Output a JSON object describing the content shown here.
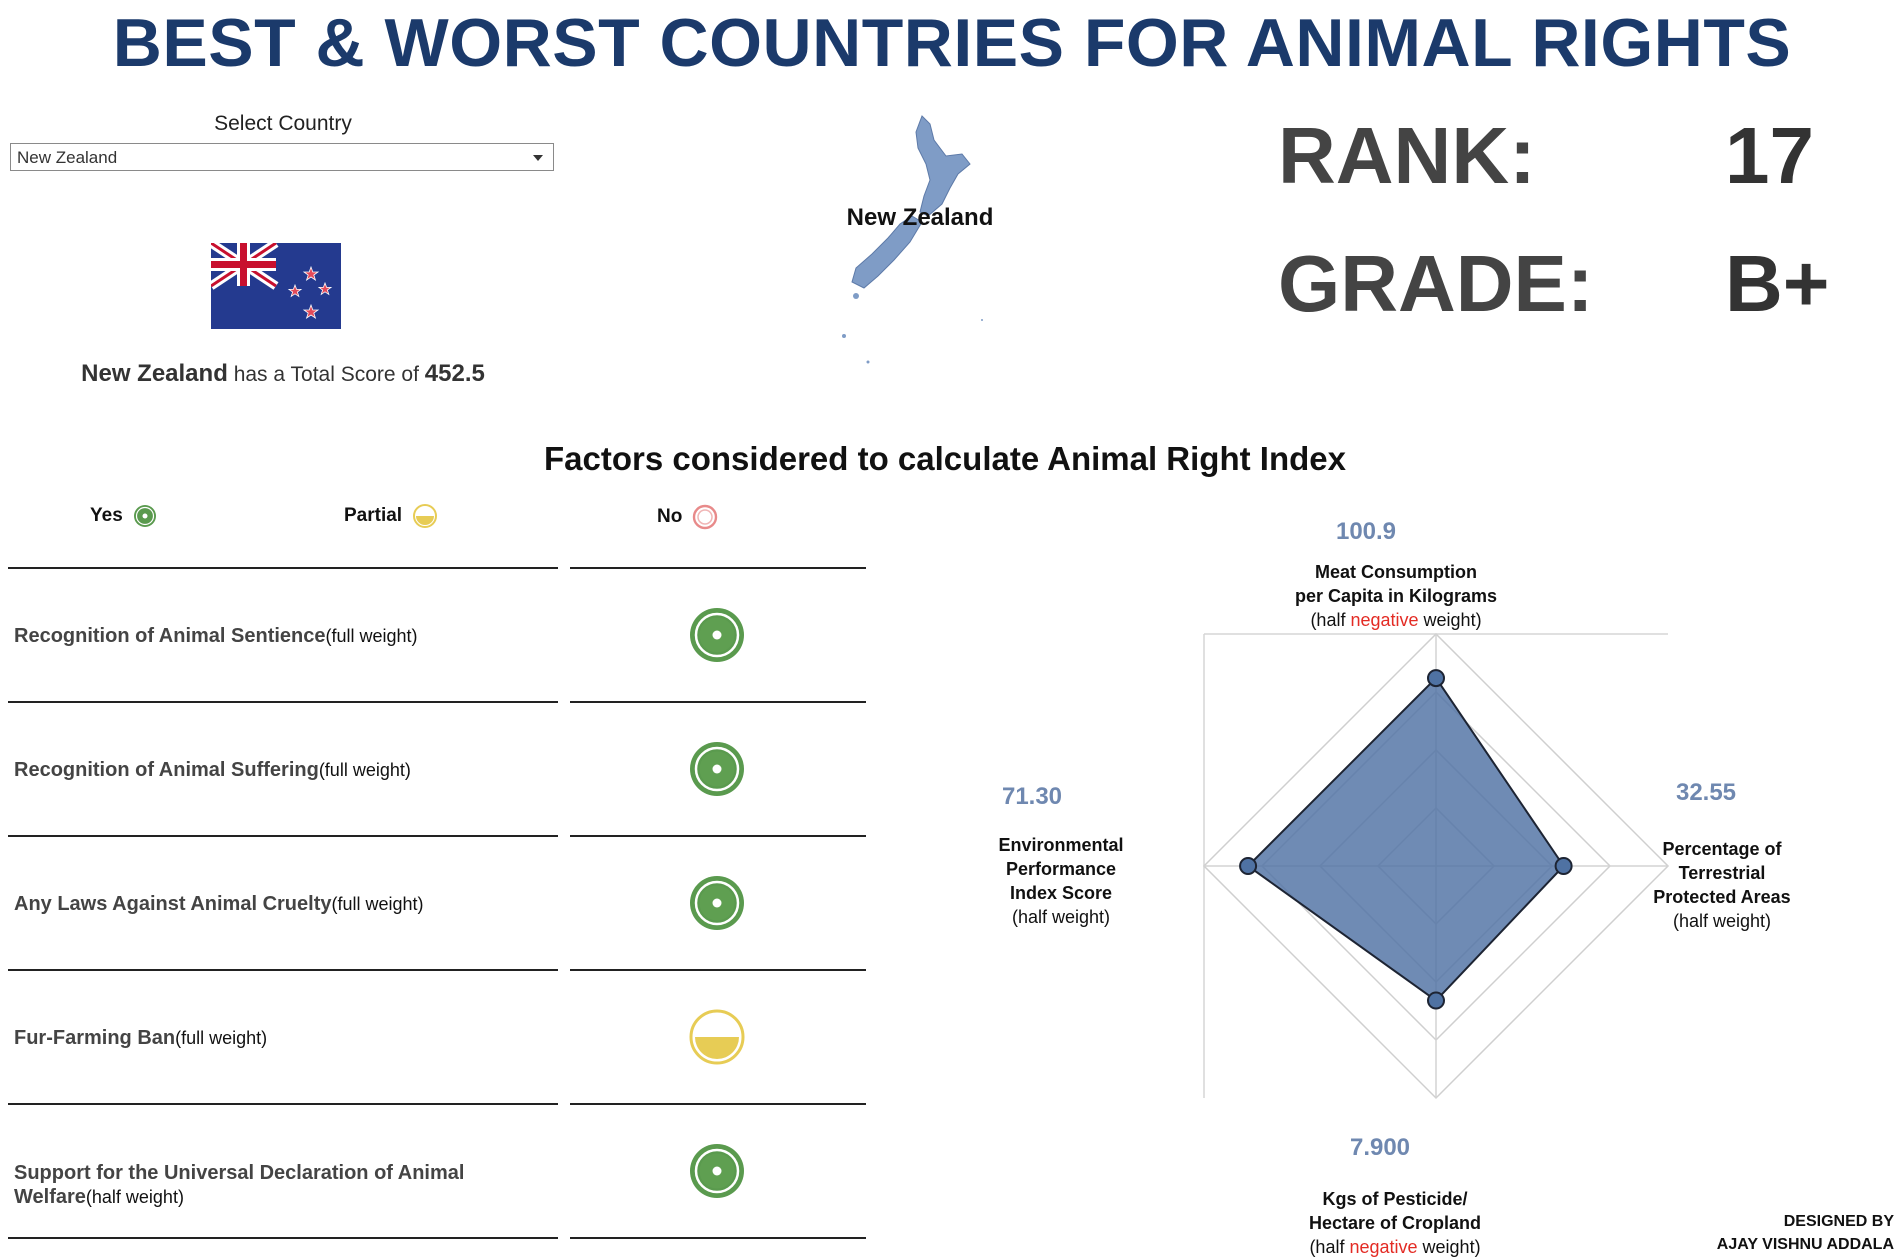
{
  "title": "BEST & WORST COUNTRIES FOR ANIMAL RIGHTS",
  "selector": {
    "label": "Select Country",
    "selected": "New Zealand"
  },
  "country": {
    "name": "New Zealand",
    "score_text": "has a Total Score of",
    "total_score": "452.5",
    "map_label": "New Zealand"
  },
  "rank": {
    "label": "RANK:",
    "value": "17"
  },
  "grade": {
    "label": "GRADE:",
    "value": "B+"
  },
  "factors_title": "Factors considered to calculate Animal Right Index",
  "legend": {
    "yes": "Yes",
    "partial": "Partial",
    "no": "No"
  },
  "status_colors": {
    "yes": "#5a9a4e",
    "partial": "#e7cc55",
    "no": "#e88a8a"
  },
  "factors": [
    {
      "name": "Recognition of Animal Sentience",
      "weight": "(full weight)",
      "status": "yes"
    },
    {
      "name": "Recognition of Animal Suffering",
      "weight": "(full weight)",
      "status": "yes"
    },
    {
      "name": "Any Laws Against Animal Cruelty",
      "weight": "(full weight)",
      "status": "yes"
    },
    {
      "name": "Fur-Farming Ban",
      "weight": "(full weight)",
      "status": "partial"
    },
    {
      "name": "Support for the Universal Declaration of Animal Welfare",
      "weight": "(half weight)",
      "status": "yes"
    }
  ],
  "chart_data": {
    "type": "radar",
    "title": "",
    "axes": [
      {
        "key": "top",
        "value_label": "100.9",
        "value": 0.81,
        "label_lines": [
          "Meat Consumption",
          "per Capita in Kilograms"
        ],
        "sub": {
          "prefix": "(half ",
          "neg": "negative",
          "suffix": " weight)"
        }
      },
      {
        "key": "right",
        "value_label": "32.55",
        "value": 0.55,
        "label_lines": [
          "Percentage of",
          "Terrestrial",
          "Protected Areas"
        ],
        "sub": {
          "prefix": "(half weight)",
          "neg": "",
          "suffix": ""
        }
      },
      {
        "key": "bottom",
        "value_label": "7.900",
        "value": 0.58,
        "label_lines": [
          "Kgs of Pesticide/",
          "Hectare of Cropland"
        ],
        "sub": {
          "prefix": "(half ",
          "neg": "negative",
          "suffix": " weight)"
        }
      },
      {
        "key": "left",
        "value_label": "71.30",
        "value": 0.81,
        "label_lines": [
          "Environmental",
          "Performance",
          "Index Score"
        ],
        "sub": {
          "prefix": "(half weight)",
          "neg": "",
          "suffix": ""
        }
      }
    ],
    "fill_color": "#4f72a3",
    "grid_rings": 4
  },
  "credit": {
    "line1": "DESIGNED BY",
    "line2": "AJAY VISHNU ADDALA"
  }
}
